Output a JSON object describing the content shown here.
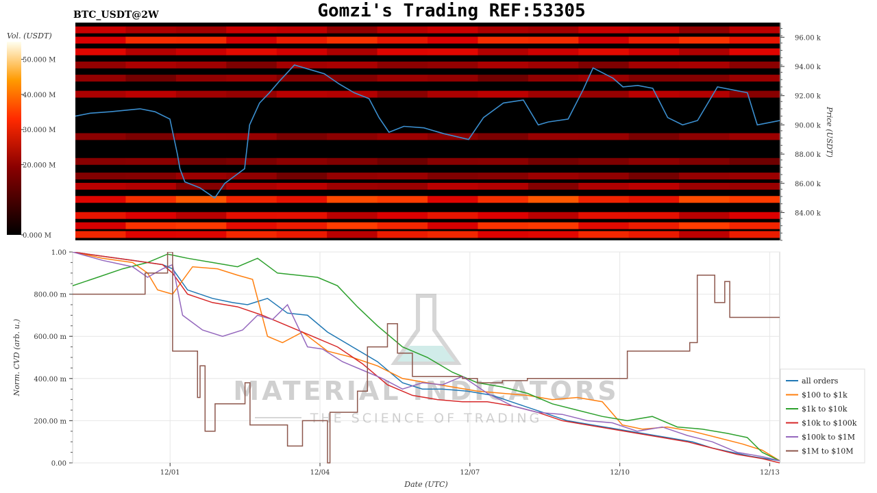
{
  "header": {
    "symbol": "BTC_USDT@2W",
    "title": "Gomzi's Trading REF:53305"
  },
  "watermark": {
    "main": "MATERIAL INDICATORS",
    "sub": "THE SCIENCE OF TRADING"
  },
  "colors": {
    "heatmap_bg": "#000000",
    "price_line": "#3b8fd0",
    "grid": "#e6e6e6"
  },
  "chart_data": [
    {
      "type": "heatmap",
      "name": "order-book-heatmap",
      "colorbar": {
        "label": "Vol. (USDT)",
        "ticks": [
          "0.000 M",
          "20.000 M",
          "30.000 M",
          "40.000 M",
          "50.000 M"
        ],
        "tick_values": [
          0,
          20,
          30,
          40,
          50
        ],
        "range": [
          0,
          55
        ]
      },
      "ylabel": "Price (USDT)",
      "ylim": [
        82100,
        97000
      ],
      "y_ticks": [
        "84.00 k",
        "86.00 k",
        "88.00 k",
        "90.00 k",
        "92.00 k",
        "94.00 k",
        "96.00 k"
      ],
      "y_tick_values": [
        84000,
        86000,
        88000,
        90000,
        92000,
        94000,
        96000
      ],
      "xlim": [
        0,
        14.15
      ],
      "price_series": {
        "name": "price",
        "x": [
          0,
          0.3,
          0.7,
          1.0,
          1.3,
          1.6,
          1.9,
          2.05,
          2.1,
          2.2,
          2.5,
          2.8,
          3.0,
          3.2,
          3.4,
          3.5,
          3.7,
          3.9,
          4.1,
          4.4,
          4.7,
          5.0,
          5.3,
          5.6,
          5.9,
          6.1,
          6.3,
          6.6,
          7.0,
          7.4,
          7.9,
          8.2,
          8.6,
          9.0,
          9.3,
          9.5,
          9.9,
          10.2,
          10.4,
          10.8,
          11.0,
          11.3,
          11.6,
          11.9,
          12.2,
          12.5,
          12.9,
          13.2,
          13.5,
          13.7,
          14.15
        ],
        "y": [
          90600,
          90800,
          90900,
          91000,
          91100,
          90900,
          90400,
          88000,
          87000,
          86100,
          85700,
          85000,
          86000,
          86500,
          87000,
          90000,
          91500,
          92200,
          93000,
          94100,
          93800,
          93500,
          92800,
          92200,
          91800,
          90500,
          89500,
          89900,
          89800,
          89400,
          89000,
          90500,
          91500,
          91700,
          90000,
          90200,
          90400,
          92400,
          93900,
          93200,
          92600,
          92700,
          92500,
          90500,
          90000,
          90300,
          92600,
          92400,
          92200,
          90000,
          90300
        ]
      },
      "bands": [
        {
          "price": 96500,
          "intensity": 0.45
        },
        {
          "price": 95800,
          "intensity": 0.75
        },
        {
          "price": 95000,
          "intensity": 0.55
        },
        {
          "price": 94100,
          "intensity": 0.35
        },
        {
          "price": 93200,
          "intensity": 0.3
        },
        {
          "price": 92100,
          "intensity": 0.4
        },
        {
          "price": 89200,
          "intensity": 0.3
        },
        {
          "price": 87500,
          "intensity": 0.25
        },
        {
          "price": 86500,
          "intensity": 0.3
        },
        {
          "price": 85800,
          "intensity": 0.4
        },
        {
          "price": 84900,
          "intensity": 0.85
        },
        {
          "price": 83800,
          "intensity": 0.6
        },
        {
          "price": 83100,
          "intensity": 0.8
        },
        {
          "price": 82500,
          "intensity": 0.7
        }
      ]
    },
    {
      "type": "line",
      "name": "normalized-cvd",
      "xlabel": "Date (UTC)",
      "ylabel": "Norm. CVD (arb. u.)",
      "xlim": [
        0,
        14.15
      ],
      "ylim": [
        0,
        1
      ],
      "x_ticks": [
        "12/01",
        "12/04",
        "12/07",
        "12/10",
        "12/13"
      ],
      "x_tick_values": [
        1.95,
        4.95,
        7.95,
        10.95,
        13.95
      ],
      "y_ticks": [
        "0.00",
        "200.00 m",
        "400.00 m",
        "600.00 m",
        "800.00 m",
        "1.00"
      ],
      "y_tick_values": [
        0,
        0.2,
        0.4,
        0.6,
        0.8,
        1.0
      ],
      "legend_position": "right",
      "grid": true,
      "series": [
        {
          "name": "all orders",
          "color": "#1f77b4",
          "x": [
            0,
            0.6,
            1.2,
            1.8,
            2.0,
            2.3,
            2.8,
            3.2,
            3.5,
            3.9,
            4.3,
            4.7,
            5.1,
            5.6,
            6.1,
            6.6,
            7.0,
            7.4,
            7.9,
            8.4,
            8.9,
            9.4,
            9.9,
            10.4,
            10.9,
            11.4,
            11.9,
            12.4,
            12.8,
            13.2,
            13.6,
            14.15
          ],
          "y": [
            1.0,
            0.98,
            0.96,
            0.94,
            0.92,
            0.82,
            0.78,
            0.76,
            0.75,
            0.78,
            0.71,
            0.7,
            0.62,
            0.55,
            0.48,
            0.38,
            0.35,
            0.35,
            0.34,
            0.32,
            0.28,
            0.24,
            0.2,
            0.18,
            0.16,
            0.14,
            0.12,
            0.1,
            0.07,
            0.05,
            0.03,
            0.01
          ]
        },
        {
          "name": "$100 to $1k",
          "color": "#ff7f0e",
          "x": [
            0,
            0.6,
            1.2,
            1.5,
            1.7,
            2.0,
            2.4,
            2.9,
            3.3,
            3.6,
            3.9,
            4.2,
            4.6,
            5.1,
            5.6,
            6.1,
            6.6,
            7.1,
            7.6,
            8.1,
            8.6,
            9.1,
            9.6,
            10.1,
            10.6,
            11.0,
            11.4,
            11.9,
            12.4,
            12.9,
            13.4,
            13.8,
            14.15
          ],
          "y": [
            1.0,
            0.97,
            0.95,
            0.9,
            0.82,
            0.8,
            0.93,
            0.92,
            0.89,
            0.87,
            0.6,
            0.57,
            0.62,
            0.53,
            0.5,
            0.46,
            0.4,
            0.38,
            0.36,
            0.34,
            0.33,
            0.32,
            0.3,
            0.31,
            0.29,
            0.18,
            0.16,
            0.17,
            0.15,
            0.12,
            0.09,
            0.06,
            0.01
          ]
        },
        {
          "name": "$1k to $10k",
          "color": "#2ca02c",
          "x": [
            0,
            0.5,
            1.0,
            1.5,
            1.9,
            2.3,
            2.8,
            3.3,
            3.7,
            4.1,
            4.5,
            4.9,
            5.3,
            5.7,
            6.1,
            6.6,
            7.1,
            7.6,
            8.1,
            8.6,
            9.1,
            9.6,
            10.1,
            10.6,
            11.1,
            11.6,
            12.1,
            12.6,
            13.1,
            13.5,
            13.8,
            14.15
          ],
          "y": [
            0.84,
            0.88,
            0.92,
            0.95,
            0.99,
            0.97,
            0.95,
            0.93,
            0.97,
            0.9,
            0.89,
            0.88,
            0.84,
            0.74,
            0.65,
            0.55,
            0.5,
            0.43,
            0.38,
            0.36,
            0.33,
            0.28,
            0.25,
            0.22,
            0.2,
            0.22,
            0.17,
            0.16,
            0.14,
            0.12,
            0.05,
            0.01
          ]
        },
        {
          "name": "$10k to $100k",
          "color": "#d62728",
          "x": [
            0,
            0.6,
            1.2,
            1.8,
            2.0,
            2.3,
            2.8,
            3.3,
            3.8,
            4.3,
            4.8,
            5.3,
            5.8,
            6.3,
            6.8,
            7.3,
            7.8,
            8.3,
            8.8,
            9.3,
            9.8,
            10.3,
            10.8,
            11.3,
            11.8,
            12.3,
            12.8,
            13.3,
            13.8,
            14.15
          ],
          "y": [
            1.0,
            0.98,
            0.96,
            0.94,
            0.9,
            0.8,
            0.76,
            0.74,
            0.7,
            0.65,
            0.6,
            0.55,
            0.47,
            0.37,
            0.32,
            0.3,
            0.29,
            0.29,
            0.27,
            0.24,
            0.2,
            0.18,
            0.16,
            0.14,
            0.12,
            0.1,
            0.07,
            0.04,
            0.02,
            0.0
          ]
        },
        {
          "name": "$100k to $1M",
          "color": "#9467bd",
          "x": [
            0,
            0.6,
            1.2,
            1.5,
            1.8,
            2.0,
            2.2,
            2.6,
            3.0,
            3.4,
            3.7,
            4.0,
            4.3,
            4.7,
            5.0,
            5.4,
            5.8,
            6.2,
            6.6,
            7.0,
            7.4,
            7.8,
            8.3,
            8.8,
            9.3,
            9.8,
            10.3,
            10.8,
            11.3,
            11.8,
            12.3,
            12.8,
            13.3,
            13.8,
            14.15
          ],
          "y": [
            1.0,
            0.96,
            0.93,
            0.88,
            0.92,
            0.94,
            0.7,
            0.63,
            0.6,
            0.63,
            0.7,
            0.68,
            0.75,
            0.55,
            0.54,
            0.48,
            0.44,
            0.4,
            0.35,
            0.38,
            0.37,
            0.41,
            0.33,
            0.27,
            0.24,
            0.23,
            0.2,
            0.19,
            0.15,
            0.17,
            0.13,
            0.1,
            0.05,
            0.03,
            0.01
          ]
        },
        {
          "name": "$1M to $10M",
          "color": "#8c564b",
          "step": true,
          "x": [
            0,
            1.45,
            1.9,
            2.0,
            2.1,
            2.5,
            2.55,
            2.65,
            2.85,
            3.1,
            3.45,
            3.55,
            4.3,
            4.6,
            4.75,
            5.1,
            5.15,
            5.7,
            5.9,
            6.3,
            6.5,
            6.6,
            6.8,
            7.1,
            7.5,
            7.8,
            8.1,
            8.6,
            9.1,
            9.6,
            10.1,
            10.6,
            11.1,
            11.6,
            12.1,
            12.35,
            12.5,
            12.85,
            13.05,
            13.15,
            14.15
          ],
          "y": [
            0.8,
            0.9,
            1.0,
            0.53,
            0.53,
            0.31,
            0.46,
            0.15,
            0.28,
            0.28,
            0.38,
            0.18,
            0.08,
            0.2,
            0.2,
            0.0,
            0.24,
            0.34,
            0.55,
            0.66,
            0.52,
            0.52,
            0.41,
            0.41,
            0.41,
            0.4,
            0.38,
            0.39,
            0.4,
            0.4,
            0.4,
            0.4,
            0.53,
            0.53,
            0.53,
            0.57,
            0.89,
            0.76,
            0.86,
            0.69,
            0.69
          ]
        }
      ]
    }
  ]
}
